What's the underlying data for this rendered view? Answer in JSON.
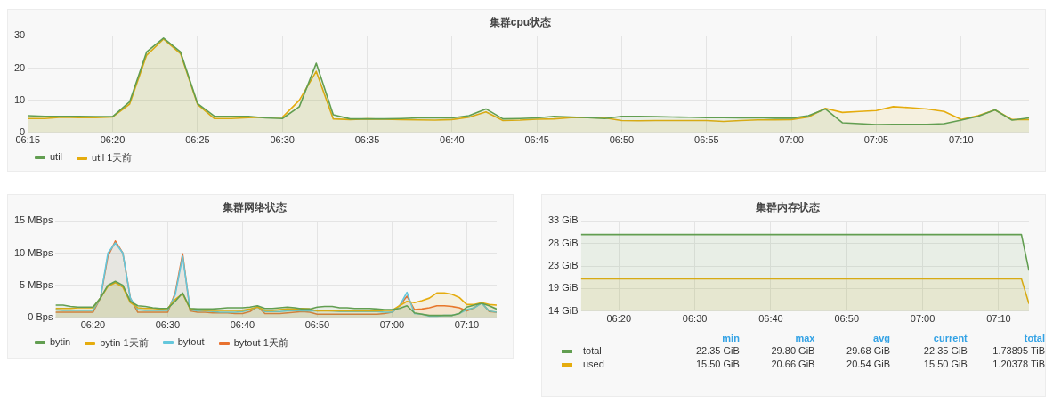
{
  "chart_data": [
    {
      "type": "area",
      "title": "集群cpu状态",
      "legend": "bottom left",
      "grid": true,
      "marker": "none",
      "x": [
        6.25,
        6.2667,
        6.2833,
        6.3,
        6.3167,
        6.3333,
        6.35,
        6.3667,
        6.3833,
        6.4,
        6.4167,
        6.4333,
        6.45,
        6.4667,
        6.4833,
        6.5,
        6.5167,
        6.5333,
        6.55,
        6.5667,
        6.5833,
        6.6,
        6.6167,
        6.6333,
        6.65,
        6.6667,
        6.6833,
        6.7,
        6.7167,
        6.7333,
        6.75,
        6.7667,
        6.7833,
        6.8,
        6.8167,
        6.8333,
        6.85,
        6.8667,
        6.8833,
        6.9,
        6.9167,
        6.9333,
        6.95,
        6.9667,
        6.9833,
        7.0,
        7.0167,
        7.0333,
        7.05,
        7.0667,
        7.0833,
        7.1,
        7.1167,
        7.1333,
        7.15,
        7.1667,
        7.1833,
        7.2,
        7.2167,
        7.2333
      ],
      "xlim": [
        6.25,
        7.2333
      ],
      "xticks": [
        {
          "value": 6.25,
          "label": "06:15"
        },
        {
          "value": 6.3333,
          "label": "06:20"
        },
        {
          "value": 6.4167,
          "label": "06:25"
        },
        {
          "value": 6.5,
          "label": "06:30"
        },
        {
          "value": 6.5833,
          "label": "06:35"
        },
        {
          "value": 6.6667,
          "label": "06:40"
        },
        {
          "value": 6.75,
          "label": "06:45"
        },
        {
          "value": 6.8333,
          "label": "06:50"
        },
        {
          "value": 6.9167,
          "label": "06:55"
        },
        {
          "value": 7.0,
          "label": "07:00"
        },
        {
          "value": 7.0833,
          "label": "07:05"
        },
        {
          "value": 7.1667,
          "label": "07:10"
        }
      ],
      "ylim": [
        0,
        30
      ],
      "yticks": [
        0,
        10,
        20,
        30
      ],
      "series": [
        {
          "name": "util",
          "color": "#629e51",
          "values": [
            5.2,
            5,
            5,
            5,
            4.9,
            4.9,
            9.5,
            25,
            29.3,
            25,
            9,
            5,
            5,
            5,
            4.5,
            4.3,
            8,
            21.5,
            5.5,
            4.2,
            4.2,
            4.2,
            4.3,
            4.5,
            4.6,
            4.5,
            5.2,
            7.3,
            4.2,
            4.3,
            4.5,
            5,
            4.8,
            4.6,
            4.3,
            5,
            5,
            4.9,
            4.8,
            4.7,
            4.6,
            4.6,
            4.5,
            4.6,
            4.4,
            4.4,
            5.2,
            7.3,
            3,
            2.7,
            2.4,
            2.5,
            2.5,
            2.5,
            2.7,
            3.8,
            5,
            7,
            3.8,
            4.5
          ]
        },
        {
          "name": "util 1天前",
          "color": "#e5ac0e",
          "values": [
            4.3,
            4.3,
            4.7,
            4.6,
            4.6,
            4.8,
            8.8,
            24,
            29,
            24.5,
            8.7,
            4.3,
            4.3,
            4.6,
            4.7,
            4.7,
            10,
            19,
            4.2,
            4,
            4.2,
            4.1,
            4,
            3.9,
            3.8,
            4,
            4.7,
            6.4,
            3.7,
            3.8,
            4.1,
            4.2,
            4.6,
            4.6,
            4.5,
            3.7,
            3.6,
            3.7,
            3.7,
            3.7,
            3.7,
            3.4,
            3.7,
            3.9,
            3.9,
            4,
            4.8,
            7.5,
            6.2,
            6.5,
            6.8,
            8,
            7.7,
            7.3,
            6.5,
            4,
            5.2,
            7,
            4,
            4
          ]
        }
      ]
    },
    {
      "type": "area",
      "title": "集群网络状态",
      "legend": "bottom left",
      "grid": true,
      "marker": "none",
      "x": [
        6.25,
        6.2667,
        6.2833,
        6.3,
        6.3167,
        6.3333,
        6.35,
        6.3667,
        6.3833,
        6.4,
        6.4167,
        6.4333,
        6.45,
        6.4667,
        6.4833,
        6.5,
        6.5167,
        6.5333,
        6.55,
        6.5667,
        6.5833,
        6.6,
        6.6167,
        6.6333,
        6.65,
        6.6667,
        6.6833,
        6.7,
        6.7167,
        6.7333,
        6.75,
        6.7667,
        6.7833,
        6.8,
        6.8167,
        6.8333,
        6.85,
        6.8667,
        6.8833,
        6.9,
        6.9167,
        6.9333,
        6.95,
        6.9667,
        6.9833,
        7.0,
        7.0167,
        7.0333,
        7.05,
        7.0667,
        7.0833,
        7.1,
        7.1167,
        7.1333,
        7.15,
        7.1667,
        7.1833,
        7.2,
        7.2167,
        7.2333
      ],
      "xlim": [
        6.25,
        7.2333
      ],
      "xticks": [
        {
          "value": 6.3333,
          "label": "06:20"
        },
        {
          "value": 6.5,
          "label": "06:30"
        },
        {
          "value": 6.6667,
          "label": "06:40"
        },
        {
          "value": 6.8333,
          "label": "06:50"
        },
        {
          "value": 7.0,
          "label": "07:00"
        },
        {
          "value": 7.1667,
          "label": "07:10"
        }
      ],
      "ylim": [
        0,
        15
      ],
      "yticks": [
        {
          "value": 0,
          "label": "0 Bps"
        },
        {
          "value": 5,
          "label": "5 MBps"
        },
        {
          "value": 10,
          "label": "10 MBps"
        },
        {
          "value": 15,
          "label": "15 MBps"
        }
      ],
      "series": [
        {
          "name": "bytin",
          "color": "#629e51",
          "values": [
            1.9,
            1.9,
            1.7,
            1.6,
            1.6,
            1.6,
            3,
            5,
            5.6,
            5,
            2.5,
            1.8,
            1.7,
            1.5,
            1.4,
            1.4,
            2.5,
            3.8,
            1.4,
            1.3,
            1.3,
            1.3,
            1.4,
            1.5,
            1.5,
            1.5,
            1.6,
            1.8,
            1.4,
            1.4,
            1.5,
            1.6,
            1.5,
            1.3,
            1.3,
            1.6,
            1.7,
            1.7,
            1.5,
            1.5,
            1.4,
            1.4,
            1.4,
            1.3,
            1.2,
            1.2,
            1.4,
            1.8,
            0.7,
            0.5,
            0.3,
            0.3,
            0.3,
            0.3,
            0.6,
            1.6,
            1.9,
            2.2,
            1.8,
            1.3
          ]
        },
        {
          "name": "bytin 1天前",
          "color": "#e5ac0e",
          "values": [
            1.4,
            1.4,
            1.4,
            1.5,
            1.5,
            1.5,
            3,
            4.8,
            5.4,
            4.7,
            2.3,
            1.5,
            1.4,
            1.4,
            1.3,
            1.4,
            2.8,
            3.7,
            1.3,
            1.2,
            1.1,
            1.1,
            1.1,
            1.1,
            1.1,
            1.1,
            1.3,
            1.6,
            1.1,
            1.1,
            1.2,
            1.3,
            1.3,
            1.4,
            1.3,
            1,
            1,
            1,
            1,
            1,
            1,
            1,
            1,
            1,
            1.1,
            1.1,
            1.8,
            2.5,
            2.3,
            2.6,
            3,
            3.8,
            3.8,
            3.6,
            3.1,
            2,
            2,
            2.3,
            2,
            1.9
          ]
        },
        {
          "name": "bytout",
          "color": "#64c7dc",
          "values": [
            1.2,
            1.1,
            1.1,
            1.1,
            1.1,
            1.1,
            3,
            10,
            11.6,
            10,
            3,
            1.2,
            1.1,
            1.1,
            1.1,
            1.1,
            3.5,
            9.5,
            1.2,
            1,
            1,
            0.9,
            0.8,
            0.8,
            0.8,
            0.9,
            1.2,
            1.6,
            0.9,
            0.9,
            0.9,
            1,
            1.1,
            1,
            1,
            1,
            1.1,
            1,
            0.9,
            0.9,
            0.9,
            0.9,
            0.9,
            0.9,
            0.8,
            0.8,
            1.8,
            3.9,
            0.6,
            0.5,
            0.2,
            0.2,
            0.3,
            0.3,
            0.6,
            1.2,
            1.5,
            2.2,
            1,
            0.8
          ]
        },
        {
          "name": "bytout 1天前",
          "color": "#e8712f",
          "values": [
            0.8,
            0.8,
            0.8,
            0.8,
            0.8,
            0.8,
            3,
            9.5,
            11.9,
            10,
            3,
            0.8,
            0.8,
            0.8,
            0.8,
            0.8,
            3.8,
            9.9,
            1,
            0.8,
            0.8,
            0.7,
            0.7,
            0.7,
            0.6,
            0.6,
            0.9,
            1.7,
            0.6,
            0.6,
            0.6,
            0.7,
            0.8,
            0.9,
            0.8,
            0.5,
            0.5,
            0.5,
            0.5,
            0.5,
            0.5,
            0.5,
            0.5,
            0.5,
            0.6,
            0.8,
            1.8,
            3.3,
            1.2,
            1.3,
            1.5,
            1.8,
            1.8,
            1.7,
            1.5,
            1,
            1.5,
            2.3,
            0.9,
            0.8
          ]
        }
      ]
    },
    {
      "type": "area",
      "title": "集群内存状态",
      "legend": "bottom",
      "grid": true,
      "marker": "none",
      "x": [
        6.25,
        6.5,
        6.75,
        7.0,
        7.2167,
        7.2333
      ],
      "xlim": [
        6.25,
        7.2333
      ],
      "xticks": [
        {
          "value": 6.3333,
          "label": "06:20"
        },
        {
          "value": 6.5,
          "label": "06:30"
        },
        {
          "value": 6.6667,
          "label": "06:40"
        },
        {
          "value": 6.8333,
          "label": "06:50"
        },
        {
          "value": 7.0,
          "label": "07:00"
        },
        {
          "value": 7.1667,
          "label": "07:10"
        }
      ],
      "ylim": [
        13.97,
        32.6
      ],
      "yticks": [
        {
          "value": 13.97,
          "label": "14 GiB"
        },
        {
          "value": 18.63,
          "label": "19 GiB"
        },
        {
          "value": 23.28,
          "label": "23 GiB"
        },
        {
          "value": 27.94,
          "label": "28 GiB"
        },
        {
          "value": 32.6,
          "label": "33 GiB"
        }
      ],
      "series": [
        {
          "name": "total",
          "color": "#629e51",
          "values": [
            29.8,
            29.8,
            29.8,
            29.8,
            29.8,
            22.35
          ]
        },
        {
          "name": "used",
          "color": "#e5ac0e",
          "values": [
            20.66,
            20.66,
            20.66,
            20.66,
            20.66,
            15.5
          ]
        }
      ],
      "annotations": [
        "min",
        "max",
        "avg",
        "current",
        "total",
        "22.35 GiB",
        "29.80 GiB",
        "29.68 GiB",
        "22.35 GiB",
        "1.73895 TiB",
        "15.50 GiB",
        "20.66 GiB",
        "20.54 GiB",
        "15.50 GiB",
        "1.20378 TiB"
      ]
    }
  ]
}
